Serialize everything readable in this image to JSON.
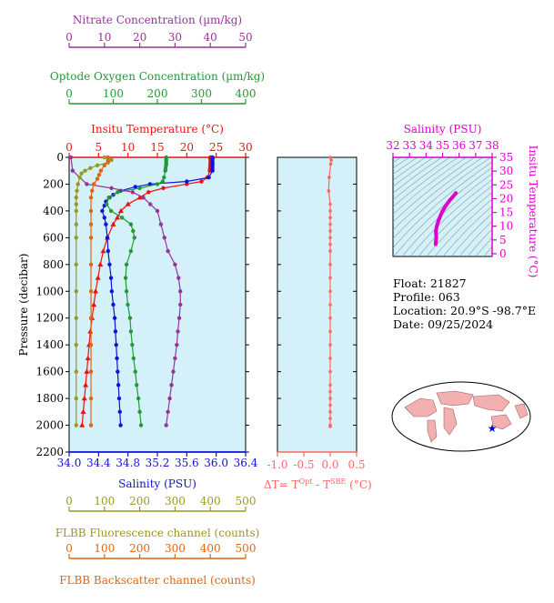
{
  "colors": {
    "nitrate": "#993399",
    "oxygen": "#229933",
    "temperature": "#ee1111",
    "salinity": "#1111dd",
    "fluorescence": "#999922",
    "backscatter": "#dd6611",
    "panel_bg": "#d4f1f9",
    "dt": "#ff6666",
    "magenta": "#dd00cc"
  },
  "float_info": {
    "float": "Float:  21827",
    "profile": "Profile:  063",
    "location": "Location:  20.9°S  -98.7°E",
    "date": "Date:  09/25/2024"
  },
  "chart_data": [
    {
      "type": "line",
      "panel": "main-profile",
      "ylabel": "Pressure (decibar)",
      "ylim": [
        2200,
        0
      ],
      "yticks": [
        "0",
        "200",
        "400",
        "600",
        "800",
        "1000",
        "1200",
        "1400",
        "1600",
        "1800",
        "2000",
        "2200"
      ],
      "axes": {
        "nitrate": {
          "title": "Nitrate Concentration (µm/kg)",
          "range": [
            0,
            50
          ],
          "ticks": [
            "0",
            "10",
            "20",
            "30",
            "40",
            "50"
          ]
        },
        "oxygen": {
          "title": "Optode Oxygen Concentration (µm/kg)",
          "range": [
            0,
            400
          ],
          "ticks": [
            "0",
            "100",
            "200",
            "300",
            "400"
          ]
        },
        "temperature": {
          "title": "Insitu Temperature (°C)",
          "range": [
            0,
            30
          ],
          "ticks": [
            "0",
            "5",
            "10",
            "15",
            "20",
            "25",
            "30"
          ]
        },
        "salinity": {
          "title": "Salinity (PSU)",
          "range": [
            34.0,
            36.4
          ],
          "ticks": [
            "34.0",
            "34.4",
            "34.8",
            "35.2",
            "35.6",
            "36.0",
            "36.4"
          ]
        },
        "fluorescence": {
          "title": "FLBB Fluorescence channel (counts)",
          "range": [
            0,
            500
          ],
          "ticks": [
            "0",
            "100",
            "200",
            "300",
            "400",
            "500"
          ]
        },
        "backscatter": {
          "title": "FLBB Backscatter channel (counts)",
          "range": [
            0,
            500
          ],
          "ticks": [
            "0",
            "100",
            "200",
            "300",
            "400",
            "500"
          ]
        }
      },
      "series": [
        {
          "key": "temperature",
          "points": [
            [
              0,
              24.0
            ],
            [
              10,
              24.0
            ],
            [
              50,
              24.0
            ],
            [
              100,
              23.9
            ],
            [
              150,
              23.5
            ],
            [
              180,
              22.5
            ],
            [
              200,
              20.0
            ],
            [
              230,
              16.0
            ],
            [
              260,
              13.5
            ],
            [
              300,
              12.0
            ],
            [
              350,
              10.0
            ],
            [
              400,
              8.8
            ],
            [
              450,
              8.2
            ],
            [
              500,
              7.5
            ],
            [
              600,
              6.5
            ],
            [
              700,
              5.8
            ],
            [
              800,
              5.3
            ],
            [
              900,
              4.9
            ],
            [
              1000,
              4.5
            ],
            [
              1100,
              4.2
            ],
            [
              1200,
              3.9
            ],
            [
              1300,
              3.6
            ],
            [
              1400,
              3.4
            ],
            [
              1500,
              3.2
            ],
            [
              1600,
              3.0
            ],
            [
              1700,
              2.8
            ],
            [
              1800,
              2.6
            ],
            [
              1900,
              2.4
            ],
            [
              2000,
              2.2
            ]
          ]
        },
        {
          "key": "salinity",
          "points": [
            [
              0,
              35.95
            ],
            [
              10,
              35.95
            ],
            [
              50,
              35.95
            ],
            [
              100,
              35.95
            ],
            [
              150,
              35.9
            ],
            [
              180,
              35.6
            ],
            [
              200,
              35.1
            ],
            [
              220,
              34.9
            ],
            [
              250,
              34.7
            ],
            [
              280,
              34.6
            ],
            [
              300,
              34.55
            ],
            [
              330,
              34.5
            ],
            [
              360,
              34.48
            ],
            [
              400,
              34.45
            ],
            [
              450,
              34.48
            ],
            [
              500,
              34.5
            ],
            [
              600,
              34.52
            ],
            [
              700,
              34.53
            ],
            [
              800,
              34.55
            ],
            [
              900,
              34.57
            ],
            [
              1000,
              34.58
            ],
            [
              1100,
              34.6
            ],
            [
              1200,
              34.62
            ],
            [
              1300,
              34.63
            ],
            [
              1400,
              34.64
            ],
            [
              1500,
              34.65
            ],
            [
              1600,
              34.66
            ],
            [
              1700,
              34.67
            ],
            [
              1800,
              34.68
            ],
            [
              1900,
              34.69
            ],
            [
              2000,
              34.7
            ]
          ]
        },
        {
          "key": "oxygen",
          "points": [
            [
              0,
              220
            ],
            [
              20,
              220
            ],
            [
              50,
              220
            ],
            [
              100,
              218
            ],
            [
              150,
              215
            ],
            [
              180,
              212
            ],
            [
              200,
              200
            ],
            [
              230,
              160
            ],
            [
              260,
              110
            ],
            [
              300,
              90
            ],
            [
              350,
              85
            ],
            [
              400,
              95
            ],
            [
              450,
              120
            ],
            [
              500,
              140
            ],
            [
              550,
              145
            ],
            [
              600,
              148
            ],
            [
              700,
              140
            ],
            [
              800,
              130
            ],
            [
              900,
              128
            ],
            [
              1000,
              130
            ],
            [
              1100,
              133
            ],
            [
              1200,
              138
            ],
            [
              1300,
              140
            ],
            [
              1400,
              143
            ],
            [
              1500,
              146
            ],
            [
              1600,
              150
            ],
            [
              1700,
              153
            ],
            [
              1800,
              157
            ],
            [
              1900,
              160
            ],
            [
              2000,
              163
            ]
          ]
        },
        {
          "key": "nitrate",
          "points": [
            [
              0,
              0.5
            ],
            [
              100,
              1
            ],
            [
              200,
              5
            ],
            [
              230,
              12
            ],
            [
              260,
              18
            ],
            [
              300,
              21
            ],
            [
              350,
              23
            ],
            [
              400,
              25
            ],
            [
              500,
              26
            ],
            [
              600,
              27
            ],
            [
              700,
              28
            ],
            [
              800,
              30
            ],
            [
              900,
              31
            ],
            [
              1000,
              31.5
            ],
            [
              1100,
              31.5
            ],
            [
              1200,
              31.2
            ],
            [
              1300,
              30.8
            ],
            [
              1400,
              30.5
            ],
            [
              1500,
              30
            ],
            [
              1600,
              29.5
            ],
            [
              1700,
              29
            ],
            [
              1800,
              28.5
            ],
            [
              1900,
              28
            ],
            [
              2000,
              27.5
            ]
          ]
        },
        {
          "key": "fluorescence",
          "points": [
            [
              0,
              100
            ],
            [
              10,
              110
            ],
            [
              20,
              120
            ],
            [
              40,
              110
            ],
            [
              60,
              80
            ],
            [
              80,
              60
            ],
            [
              100,
              45
            ],
            [
              120,
              35
            ],
            [
              150,
              30
            ],
            [
              200,
              25
            ],
            [
              250,
              22
            ],
            [
              300,
              20
            ],
            [
              350,
              20
            ],
            [
              400,
              20
            ],
            [
              500,
              20
            ],
            [
              600,
              20
            ],
            [
              800,
              20
            ],
            [
              1000,
              20
            ],
            [
              1200,
              20
            ],
            [
              1400,
              20
            ],
            [
              1600,
              20
            ],
            [
              1800,
              20
            ],
            [
              2000,
              20
            ]
          ]
        },
        {
          "key": "backscatter",
          "points": [
            [
              0,
              110
            ],
            [
              30,
              110
            ],
            [
              60,
              100
            ],
            [
              100,
              90
            ],
            [
              130,
              85
            ],
            [
              160,
              80
            ],
            [
              200,
              70
            ],
            [
              250,
              65
            ],
            [
              300,
              62
            ],
            [
              400,
              62
            ],
            [
              500,
              62
            ],
            [
              600,
              62
            ],
            [
              800,
              62
            ],
            [
              1000,
              62
            ],
            [
              1200,
              62
            ],
            [
              1400,
              62
            ],
            [
              1600,
              62
            ],
            [
              1800,
              62
            ],
            [
              2000,
              62
            ]
          ]
        }
      ]
    },
    {
      "type": "line",
      "panel": "delta-t",
      "xlabel": "ΔT= T",
      "xlabel_sup1": "Opt",
      "xlabel_mid": " - T",
      "xlabel_sup2": "SBE",
      "xlabel_end": " (°C)",
      "xlim": [
        -1.0,
        0.5
      ],
      "xticks": [
        "-1.0",
        "-0.5",
        "0.0",
        "0.5"
      ],
      "ylim": [
        2200,
        0
      ],
      "values": [
        0.0,
        0.02,
        0.01,
        -0.02,
        -0.03,
        0.0,
        0.0,
        0.0,
        0.0,
        0.0,
        0.0,
        0.0,
        0.0,
        0.0,
        0.0,
        0.0,
        0.0,
        0.0,
        0.0,
        0.0,
        0.0,
        0.0,
        0.0,
        0.0,
        0.0,
        0.0,
        0.0,
        0.0,
        0.0,
        0.0
      ],
      "pressures": [
        0,
        20,
        50,
        150,
        250,
        350,
        400,
        450,
        500,
        550,
        600,
        650,
        700,
        800,
        900,
        1000,
        1100,
        1200,
        1300,
        1400,
        1500,
        1600,
        1700,
        1750,
        1800,
        1850,
        1900,
        1950,
        2000,
        2010
      ]
    },
    {
      "type": "scatter",
      "panel": "ts-diagram",
      "title": "Salinity (PSU)",
      "ylabel": "Insitu Temperature (°C)",
      "xlim": [
        32,
        38
      ],
      "ylim": [
        -1,
        35
      ],
      "xticks": [
        "32",
        "33",
        "34",
        "35",
        "36",
        "37",
        "38"
      ],
      "yticks": [
        "0",
        "5",
        "10",
        "15",
        "20",
        "25",
        "30",
        "35"
      ],
      "points": [
        [
          34.58,
          3.5
        ],
        [
          34.6,
          4.5
        ],
        [
          34.62,
          6
        ],
        [
          34.6,
          7.5
        ],
        [
          34.6,
          8.5
        ],
        [
          34.65,
          10
        ],
        [
          34.75,
          12
        ],
        [
          34.85,
          13.5
        ],
        [
          35.0,
          15.5
        ],
        [
          35.2,
          17.5
        ],
        [
          35.45,
          19.5
        ],
        [
          35.6,
          20.5
        ],
        [
          35.8,
          22
        ]
      ]
    }
  ]
}
